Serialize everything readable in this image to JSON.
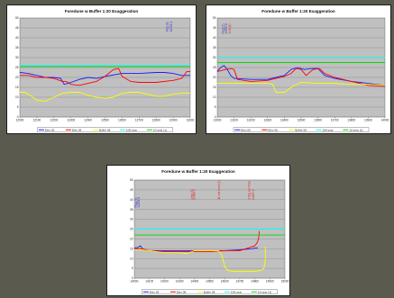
{
  "colors": {
    "page_bg": "#5a5a4f",
    "plot_bg": "#c0c0c0",
    "grid": "#808080",
    "elev_05": "#1a1aff",
    "elev_08": "#ff0000",
    "buffer_08": "#ffff00",
    "yr_100": "#00ffff",
    "yr_10": "#00dd00",
    "annot_blue": "#3333cc",
    "annot_red": "#dd2222"
  },
  "chart_data": [
    {
      "type": "line",
      "title": "Foredune w Buffer 1:20 Exaggeration",
      "xlim": [
        12000,
        13000
      ],
      "ylim": [
        0,
        50
      ],
      "x_ticks": [
        12000,
        12100,
        12200,
        12300,
        12400,
        12500,
        12600,
        12700,
        12800,
        12900,
        13000
      ],
      "y_ticks": [
        0,
        5,
        10,
        15,
        20,
        25,
        30,
        35,
        40,
        45,
        50
      ],
      "grid": true,
      "legend_position": "bottom",
      "series": [
        {
          "name": "Elev 05",
          "color_key": "elev_05",
          "points": [
            [
              12000,
              22.5
            ],
            [
              12050,
              22
            ],
            [
              12100,
              21
            ],
            [
              12150,
              20
            ],
            [
              12200,
              20
            ],
            [
              12240,
              19.5
            ],
            [
              12260,
              16.5
            ],
            [
              12300,
              17.5
            ],
            [
              12350,
              19
            ],
            [
              12400,
              20
            ],
            [
              12450,
              19.5
            ],
            [
              12500,
              20.5
            ],
            [
              12600,
              22
            ],
            [
              12700,
              22
            ],
            [
              12800,
              22.5
            ],
            [
              12850,
              22.5
            ],
            [
              12900,
              22
            ],
            [
              12950,
              21
            ],
            [
              13000,
              21
            ]
          ]
        },
        {
          "name": "Elev 08",
          "color_key": "elev_08",
          "points": [
            [
              12000,
              21
            ],
            [
              12050,
              21
            ],
            [
              12100,
              20
            ],
            [
              12150,
              20
            ],
            [
              12200,
              19.5
            ],
            [
              12250,
              18
            ],
            [
              12270,
              18
            ],
            [
              12300,
              16.5
            ],
            [
              12350,
              16
            ],
            [
              12400,
              17
            ],
            [
              12450,
              18
            ],
            [
              12500,
              20.5
            ],
            [
              12520,
              22
            ],
            [
              12550,
              24
            ],
            [
              12580,
              24.5
            ],
            [
              12600,
              20.5
            ],
            [
              12650,
              18
            ],
            [
              12700,
              17.5
            ],
            [
              12800,
              17.5
            ],
            [
              12900,
              18.5
            ],
            [
              12950,
              19.5
            ],
            [
              12980,
              23
            ],
            [
              13000,
              23
            ]
          ]
        },
        {
          "name": "Buffer 08",
          "color_key": "buffer_08",
          "points": [
            [
              12000,
              12.5
            ],
            [
              12030,
              12.5
            ],
            [
              12060,
              11
            ],
            [
              12100,
              8.5
            ],
            [
              12150,
              8
            ],
            [
              12200,
              10
            ],
            [
              12250,
              12
            ],
            [
              12300,
              12.5
            ],
            [
              12350,
              12.5
            ],
            [
              12400,
              11
            ],
            [
              12450,
              10
            ],
            [
              12500,
              9.5
            ],
            [
              12550,
              10
            ],
            [
              12600,
              12
            ],
            [
              12650,
              12.5
            ],
            [
              12700,
              12.5
            ],
            [
              12750,
              11.5
            ],
            [
              12800,
              10.5
            ],
            [
              12850,
              10.5
            ],
            [
              12900,
              11.5
            ],
            [
              12950,
              12
            ],
            [
              13000,
              12
            ]
          ]
        },
        {
          "name": "100-year",
          "color_key": "yr_100",
          "points": [
            [
              12000,
              26
            ],
            [
              13000,
              26
            ]
          ]
        },
        {
          "name": "10-year (1)",
          "color_key": "yr_10",
          "points": [
            [
              12000,
              25.5
            ],
            [
              13000,
              25.5
            ]
          ]
        }
      ],
      "annotations": [
        {
          "text": "Flag (6)",
          "color_key": "annot_blue",
          "x": 12870,
          "y": 43
        },
        {
          "text": "12935.1",
          "color_key": "annot_blue",
          "x": 12895,
          "y": 43
        }
      ]
    },
    {
      "type": "line",
      "title": "Foredune w Buffer 1:20 Exaggeration",
      "xlim": [
        13000,
        14000
      ],
      "ylim": [
        0,
        50
      ],
      "x_ticks": [
        13000,
        13100,
        13200,
        13300,
        13400,
        13500,
        13600,
        13700,
        13800,
        13900,
        14000
      ],
      "y_ticks": [
        0,
        5,
        10,
        15,
        20,
        25,
        30,
        35,
        40,
        45,
        50
      ],
      "grid": true,
      "legend_position": "bottom",
      "series": [
        {
          "name": "Elev 05",
          "color_key": "elev_05",
          "points": [
            [
              13000,
              23
            ],
            [
              13020,
              25
            ],
            [
              13040,
              26
            ],
            [
              13060,
              24
            ],
            [
              13080,
              21
            ],
            [
              13100,
              19.5
            ],
            [
              13200,
              19
            ],
            [
              13300,
              19
            ],
            [
              13350,
              20
            ],
            [
              13400,
              21
            ],
            [
              13440,
              24
            ],
            [
              13480,
              25
            ],
            [
              13520,
              24
            ],
            [
              13560,
              24.5
            ],
            [
              13600,
              24.5
            ],
            [
              13640,
              21
            ],
            [
              13700,
              19.5
            ],
            [
              13800,
              18
            ],
            [
              13900,
              17
            ],
            [
              14000,
              16
            ]
          ]
        },
        {
          "name": "Elev 08",
          "color_key": "elev_08",
          "points": [
            [
              13000,
              23
            ],
            [
              13050,
              24
            ],
            [
              13080,
              24.5
            ],
            [
              13100,
              24
            ],
            [
              13120,
              19
            ],
            [
              13200,
              18
            ],
            [
              13300,
              18.5
            ],
            [
              13350,
              19.5
            ],
            [
              13400,
              20.5
            ],
            [
              13440,
              22
            ],
            [
              13470,
              24.5
            ],
            [
              13500,
              24
            ],
            [
              13530,
              21
            ],
            [
              13570,
              24
            ],
            [
              13610,
              24.5
            ],
            [
              13640,
              22
            ],
            [
              13700,
              20
            ],
            [
              13800,
              18
            ],
            [
              13900,
              16
            ],
            [
              14000,
              15.5
            ]
          ]
        },
        {
          "name": "Buffer 08",
          "color_key": "buffer_08",
          "points": [
            [
              13000,
              17
            ],
            [
              13100,
              17
            ],
            [
              13200,
              17
            ],
            [
              13300,
              17
            ],
            [
              13330,
              16.5
            ],
            [
              13350,
              12.5
            ],
            [
              13400,
              12.5
            ],
            [
              13450,
              15.5
            ],
            [
              13500,
              17.5
            ],
            [
              13600,
              17
            ],
            [
              13700,
              17
            ],
            [
              13800,
              16.5
            ],
            [
              13900,
              16.5
            ],
            [
              14000,
              16
            ]
          ]
        },
        {
          "name": "100-year",
          "color_key": "yr_100",
          "points": [
            [
              13000,
              30
            ],
            [
              14000,
              30
            ]
          ]
        },
        {
          "name": "10-year (1)",
          "color_key": "yr_10",
          "points": [
            [
              13000,
              27.5
            ],
            [
              14000,
              27.5
            ]
          ]
        }
      ],
      "annotations": [
        {
          "text": "Flag (7)",
          "color_key": "annot_blue",
          "x": 13040,
          "y": 42
        },
        {
          "text": "13097.8",
          "color_key": "annot_blue",
          "x": 13060,
          "y": 42
        },
        {
          "text": "1:16 (8)",
          "color_key": "annot_red",
          "x": 13080,
          "y": 42
        }
      ]
    },
    {
      "type": "line",
      "title": "Foredune w Buffer 1:20 Exaggeration",
      "xlim": [
        14000,
        15000
      ],
      "ylim": [
        0,
        50
      ],
      "x_ticks": [
        14000,
        14100,
        14200,
        14300,
        14400,
        14500,
        14600,
        14700,
        14800,
        14900,
        15000
      ],
      "y_ticks": [
        0,
        5,
        10,
        15,
        20,
        25,
        30,
        35,
        40,
        45,
        50
      ],
      "grid": true,
      "legend_position": "bottom",
      "series": [
        {
          "name": "Elev 05",
          "color_key": "elev_05",
          "points": [
            [
              14000,
              15.5
            ],
            [
              14020,
              15.5
            ],
            [
              14040,
              16.5
            ],
            [
              14060,
              14.5
            ],
            [
              14100,
              14
            ],
            [
              14200,
              14
            ],
            [
              14300,
              14
            ],
            [
              14400,
              14
            ],
            [
              14500,
              14
            ],
            [
              14600,
              14
            ],
            [
              14700,
              14.5
            ],
            [
              14780,
              15
            ],
            [
              14820,
              15.5
            ]
          ]
        },
        {
          "name": "Elev 08",
          "color_key": "elev_08",
          "points": [
            [
              14000,
              15
            ],
            [
              14050,
              15
            ],
            [
              14080,
              14.5
            ],
            [
              14100,
              14
            ],
            [
              14200,
              13.5
            ],
            [
              14300,
              13.5
            ],
            [
              14400,
              13.5
            ],
            [
              14500,
              13.5
            ],
            [
              14600,
              14
            ],
            [
              14700,
              14
            ],
            [
              14800,
              16.5
            ],
            [
              14815,
              18
            ],
            [
              14825,
              20
            ],
            [
              14830,
              24
            ]
          ]
        },
        {
          "name": "Buffer 08",
          "color_key": "buffer_08",
          "points": [
            [
              14000,
              14.5
            ],
            [
              14050,
              14.5
            ],
            [
              14100,
              14
            ],
            [
              14200,
              13
            ],
            [
              14300,
              13
            ],
            [
              14350,
              12.5
            ],
            [
              14400,
              14
            ],
            [
              14500,
              14
            ],
            [
              14560,
              14
            ],
            [
              14580,
              12
            ],
            [
              14600,
              6
            ],
            [
              14620,
              4
            ],
            [
              14650,
              3.5
            ],
            [
              14700,
              3.5
            ],
            [
              14800,
              3.5
            ],
            [
              14840,
              4
            ],
            [
              14860,
              5
            ],
            [
              14870,
              9
            ],
            [
              14870,
              16
            ]
          ]
        },
        {
          "name": "100-year",
          "color_key": "yr_100",
          "points": [
            [
              14000,
              25
            ],
            [
              15000,
              25
            ]
          ]
        },
        {
          "name": "10-year (1)",
          "color_key": "yr_10",
          "points": [
            [
              14000,
              22
            ],
            [
              15000,
              22
            ]
          ]
        }
      ],
      "annotations": [
        {
          "text": "Flag (9)",
          "color_key": "annot_blue",
          "x": 14018,
          "y": 36
        },
        {
          "text": "14034.6",
          "color_key": "annot_blue",
          "x": 14036,
          "y": 36
        },
        {
          "text": "1:Hd (9)",
          "color_key": "annot_red",
          "x": 14390,
          "y": 40
        },
        {
          "text": "14384.5",
          "color_key": "annot_red",
          "x": 14405,
          "y": 40
        },
        {
          "text": "11 wet from (4)",
          "color_key": "annot_red",
          "x": 14570,
          "y": 40
        },
        {
          "text": "1:Tag wet from",
          "color_key": "annot_red",
          "x": 14770,
          "y": 40
        },
        {
          "text": "14827.0",
          "color_key": "annot_red",
          "x": 14795,
          "y": 40
        }
      ]
    }
  ]
}
